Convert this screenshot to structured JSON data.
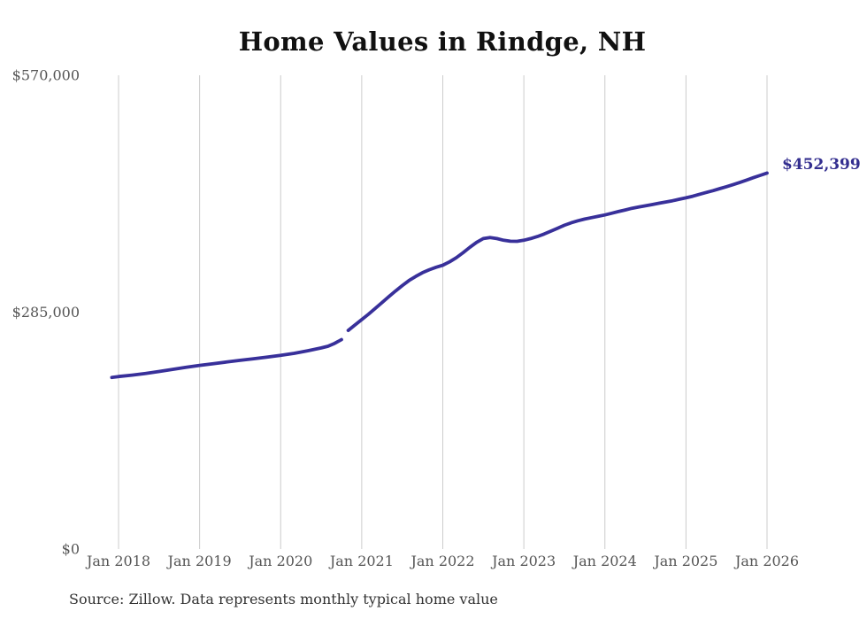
{
  "chart_data": {
    "type": "line",
    "title": "Home Values in Rindge, NH",
    "source_note": "Source: Zillow. Data represents monthly typical home value",
    "series_name": "Monthly typical home value",
    "end_label": "$452,399",
    "end_value": 452399,
    "ylim": [
      0,
      570000
    ],
    "grid": "vertical-only",
    "legend": "none",
    "y_ticks": [
      {
        "label": "$570,000",
        "value": 570000
      },
      {
        "label": "$285,000",
        "value": 285000
      },
      {
        "label": "$0",
        "value": 0
      }
    ],
    "x_ticks": [
      "Jan 2018",
      "Jan 2019",
      "Jan 2020",
      "Jan 2021",
      "Jan 2022",
      "Jan 2023",
      "Jan 2024",
      "Jan 2025",
      "Jan 2026"
    ],
    "colors": {
      "line": "#38309a",
      "end_label": "#332e8f",
      "grid": "#cccccc",
      "axis_text": "#555555",
      "title": "#111111",
      "source": "#333333",
      "background": "#ffffff"
    },
    "segments": [
      [
        [
          "2017-12",
          206500
        ],
        [
          "2018-01",
          207500
        ],
        [
          "2018-03",
          209300
        ],
        [
          "2018-05",
          211300
        ],
        [
          "2018-07",
          213600
        ],
        [
          "2018-09",
          216200
        ],
        [
          "2018-11",
          218700
        ],
        [
          "2019-01",
          221000
        ],
        [
          "2019-03",
          223000
        ],
        [
          "2019-05",
          225000
        ],
        [
          "2019-07",
          227000
        ],
        [
          "2019-09",
          229000
        ],
        [
          "2019-11",
          231000
        ],
        [
          "2020-01",
          233000
        ],
        [
          "2020-03",
          235500
        ],
        [
          "2020-05",
          238500
        ],
        [
          "2020-07",
          242000
        ],
        [
          "2020-08",
          244000
        ],
        [
          "2020-09",
          247500
        ],
        [
          "2020-10",
          252000
        ]
      ],
      [
        [
          "2020-11",
          263000
        ],
        [
          "2020-12",
          269500
        ],
        [
          "2021-01",
          276000
        ],
        [
          "2021-02",
          282500
        ],
        [
          "2021-03",
          289500
        ],
        [
          "2021-04",
          296500
        ],
        [
          "2021-05",
          303500
        ],
        [
          "2021-06",
          310500
        ],
        [
          "2021-07",
          317000
        ],
        [
          "2021-08",
          323000
        ],
        [
          "2021-09",
          328000
        ],
        [
          "2021-10",
          332500
        ],
        [
          "2021-11",
          336000
        ],
        [
          "2021-12",
          339000
        ],
        [
          "2022-01",
          341500
        ],
        [
          "2022-02",
          345500
        ],
        [
          "2022-03",
          350500
        ],
        [
          "2022-04",
          356500
        ],
        [
          "2022-05",
          363000
        ],
        [
          "2022-06",
          369000
        ],
        [
          "2022-07",
          373500
        ],
        [
          "2022-08",
          374800
        ],
        [
          "2022-09",
          373500
        ],
        [
          "2022-10",
          371500
        ],
        [
          "2022-11",
          370300
        ],
        [
          "2022-12",
          370200
        ],
        [
          "2023-01",
          371500
        ],
        [
          "2023-02",
          373500
        ],
        [
          "2023-03",
          376000
        ],
        [
          "2023-04",
          379000
        ],
        [
          "2023-05",
          382500
        ],
        [
          "2023-06",
          386000
        ],
        [
          "2023-07",
          389500
        ],
        [
          "2023-08",
          392500
        ],
        [
          "2023-09",
          395000
        ],
        [
          "2023-10",
          397000
        ],
        [
          "2023-11",
          398700
        ],
        [
          "2023-12",
          400300
        ],
        [
          "2024-01",
          402000
        ],
        [
          "2024-02",
          404000
        ],
        [
          "2024-03",
          406000
        ],
        [
          "2024-04",
          408000
        ],
        [
          "2024-05",
          410000
        ],
        [
          "2024-06",
          411500
        ],
        [
          "2024-07",
          413000
        ],
        [
          "2024-08",
          414500
        ],
        [
          "2024-09",
          416000
        ],
        [
          "2024-10",
          417500
        ],
        [
          "2024-11",
          419000
        ],
        [
          "2024-12",
          420800
        ],
        [
          "2025-01",
          422500
        ],
        [
          "2025-02",
          424500
        ],
        [
          "2025-03",
          426800
        ],
        [
          "2025-04",
          429000
        ],
        [
          "2025-05",
          431200
        ],
        [
          "2025-06",
          433600
        ],
        [
          "2025-07",
          436000
        ],
        [
          "2025-08",
          438500
        ],
        [
          "2025-09",
          441200
        ],
        [
          "2025-10",
          444000
        ],
        [
          "2025-11",
          446800
        ],
        [
          "2025-12",
          449600
        ],
        [
          "2026-01",
          452399
        ]
      ]
    ]
  }
}
